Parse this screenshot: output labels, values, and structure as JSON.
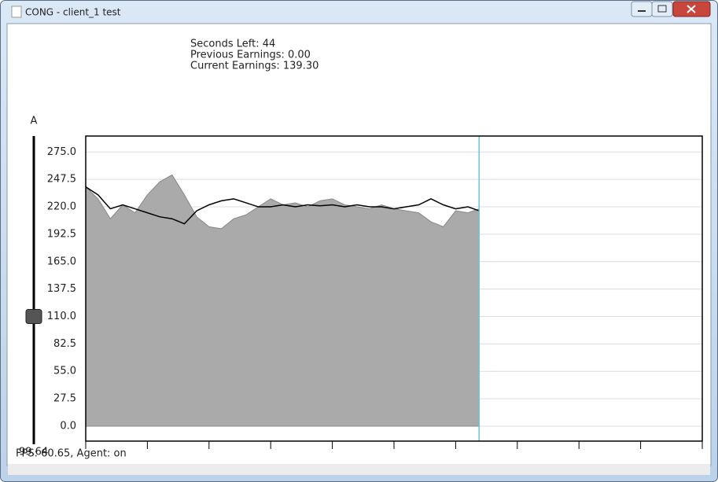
{
  "window": {
    "title": "CONG - client_1 test"
  },
  "status": {
    "seconds_left": "Seconds Left: 44",
    "previous_earnings": "Previous Earnings: 0.00",
    "current_earnings": "Current Earnings: 139.30"
  },
  "slider": {
    "label": "A",
    "value": 110,
    "readout": "99.64"
  },
  "footer": {
    "fps": "FPS: 60.65, Agent: on"
  },
  "chart_data": {
    "type": "area-line",
    "x": [
      0,
      2,
      4,
      6,
      8,
      10,
      12,
      14,
      16,
      18,
      20,
      22,
      24,
      26,
      28,
      30,
      32,
      34,
      36,
      38,
      40,
      42,
      44,
      46,
      48,
      50,
      52,
      54,
      56,
      58,
      60,
      62,
      63.8
    ],
    "series": [
      {
        "color": "#aaaaaa",
        "values": [
          240,
          228,
          208,
          222,
          214,
          232,
          245,
          252,
          232,
          210,
          200,
          198,
          208,
          212,
          220,
          228,
          222,
          224,
          220,
          226,
          228,
          222,
          220,
          218,
          222,
          218,
          216,
          214,
          205,
          200,
          216,
          214,
          218
        ]
      },
      {
        "color": "#000000",
        "values": [
          240,
          232,
          218,
          222,
          218,
          214,
          210,
          208,
          203,
          216,
          222,
          226,
          228,
          224,
          220,
          220,
          222,
          220,
          222,
          221,
          222,
          220,
          222,
          220,
          220,
          218,
          220,
          222,
          228,
          222,
          218,
          220,
          216
        ]
      }
    ],
    "cursor_x": 63.8,
    "cursor_color": "#6cc4d8",
    "xlim": [
      0,
      100
    ],
    "xticks": [
      0,
      10,
      20,
      30,
      40,
      50,
      60,
      70,
      80,
      90,
      100
    ],
    "ylim": [
      -15,
      291
    ],
    "yticks": [
      {
        "value": 0,
        "label": "0.0"
      },
      {
        "value": 27.5,
        "label": "27.5"
      },
      {
        "value": 55,
        "label": "55.0"
      },
      {
        "value": 82.5,
        "label": "82.5"
      },
      {
        "value": 110,
        "label": "110.0"
      },
      {
        "value": 137.5,
        "label": "137.5"
      },
      {
        "value": 165,
        "label": "165.0"
      },
      {
        "value": 192.5,
        "label": "192.5"
      },
      {
        "value": 220,
        "label": "220.0"
      },
      {
        "value": 247.5,
        "label": "247.5"
      },
      {
        "value": 275,
        "label": "275.0"
      }
    ],
    "grid": true
  }
}
